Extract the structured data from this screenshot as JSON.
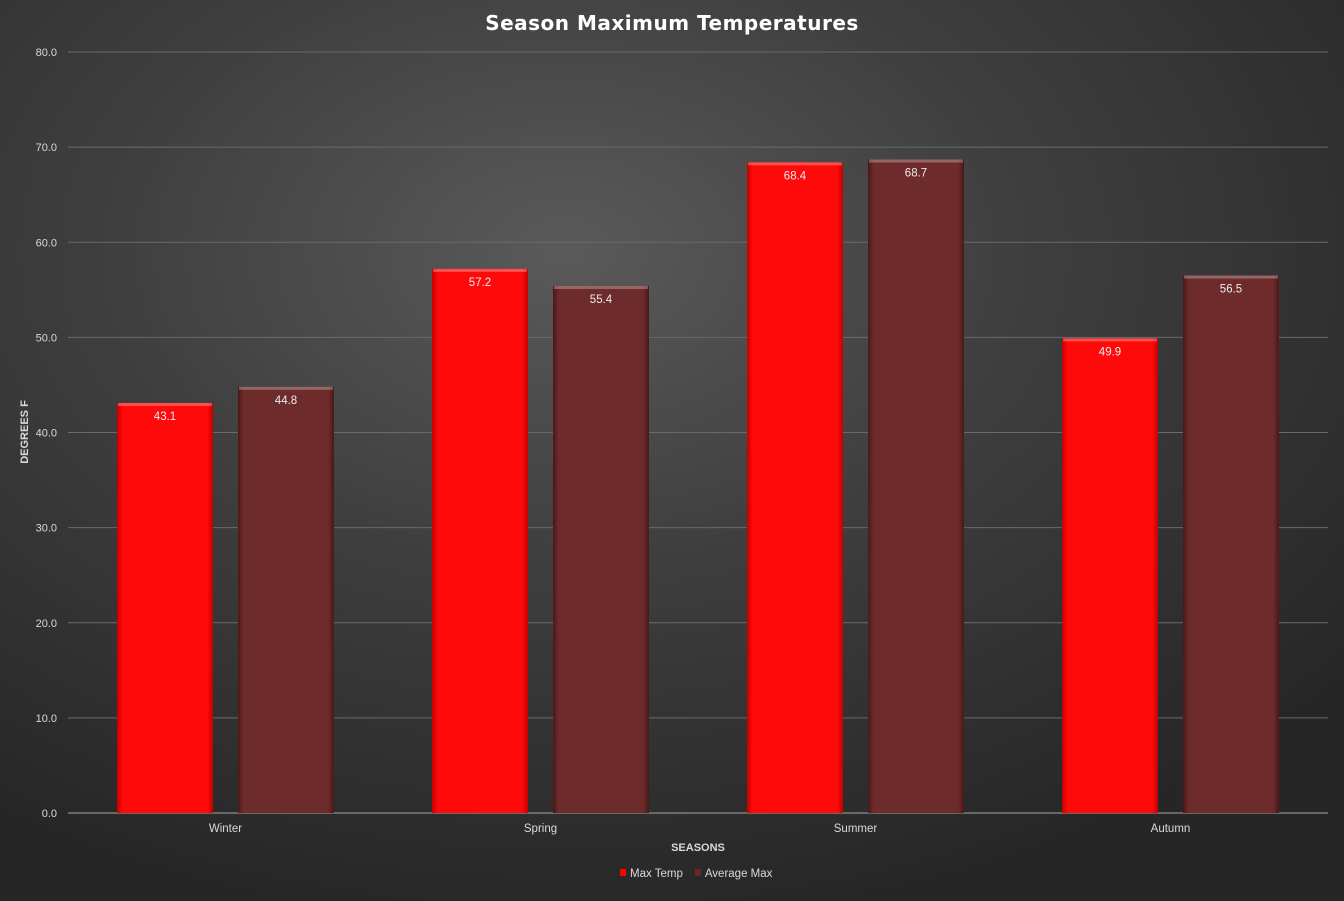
{
  "chart_data": {
    "type": "bar",
    "title": "Season Maximum Temperatures",
    "xlabel": "SEASONS",
    "ylabel": "DEGREES F",
    "categories": [
      "Winter",
      "Spring",
      "Summer",
      "Autumn"
    ],
    "series": [
      {
        "name": "Max Temp",
        "values": [
          43.1,
          57.2,
          68.4,
          49.9
        ],
        "color": "#ff0000"
      },
      {
        "name": "Average Max",
        "values": [
          44.8,
          55.4,
          68.7,
          56.5
        ],
        "color": "#6b2727"
      }
    ],
    "ylim": [
      0,
      80
    ],
    "yticks": [
      "0.0",
      "10.0",
      "20.0",
      "30.0",
      "40.0",
      "50.0",
      "60.0",
      "70.0",
      "80.0"
    ],
    "grid": true,
    "legend_position": "bottom",
    "background": "#3a3a3a"
  }
}
